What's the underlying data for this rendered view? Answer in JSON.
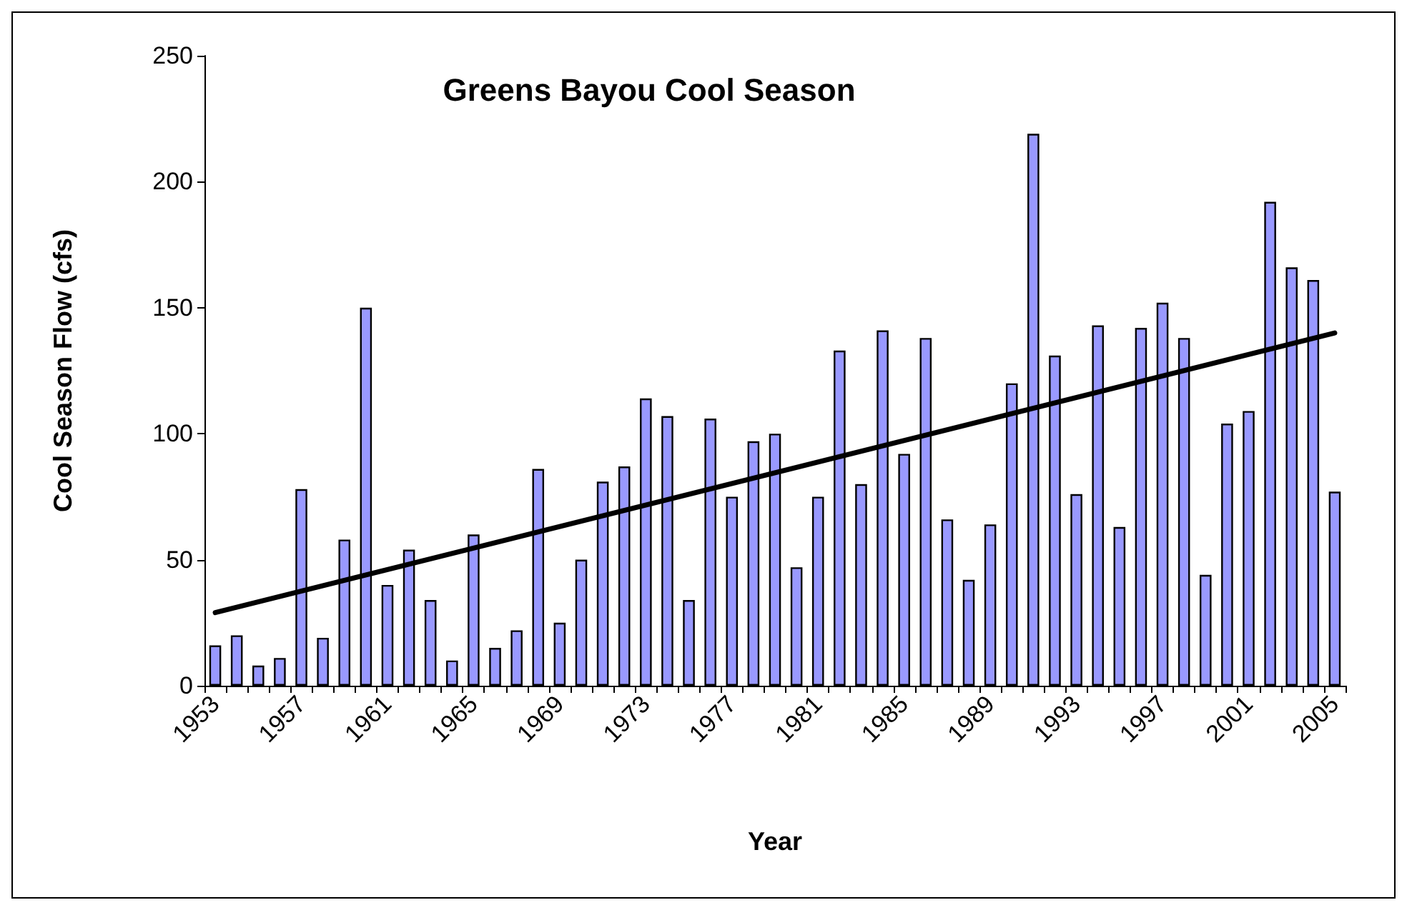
{
  "chart_data": {
    "type": "bar",
    "title": "Greens Bayou Cool Season",
    "xlabel": "Year",
    "ylabel": "Cool Season Flow (cfs)",
    "categories": [
      "1953",
      null,
      null,
      null,
      "1957",
      null,
      null,
      null,
      "1961",
      null,
      null,
      null,
      "1965",
      null,
      null,
      null,
      "1969",
      null,
      null,
      null,
      "1973",
      null,
      null,
      null,
      "1977",
      null,
      null,
      null,
      "1981",
      null,
      null,
      null,
      "1985",
      null,
      null,
      null,
      "1989",
      null,
      null,
      null,
      "1993",
      null,
      null,
      null,
      "1997",
      null,
      null,
      null,
      "2001",
      null,
      null,
      null,
      "2005"
    ],
    "series": [
      {
        "color": "#9999ff",
        "values": [
          16,
          20,
          8,
          11,
          78,
          19,
          58,
          150,
          40,
          54,
          34,
          10,
          60,
          15,
          22,
          86,
          25,
          50,
          81,
          87,
          114,
          107,
          34,
          106,
          75,
          97,
          100,
          47,
          75,
          133,
          80,
          141,
          92,
          138,
          66,
          42,
          64,
          120,
          219,
          131,
          76,
          143,
          63,
          142,
          152,
          138,
          44,
          104,
          109,
          192,
          166,
          161,
          77
        ]
      },
      {
        "type": "line",
        "color": "#000000",
        "values": [
          29,
          null,
          null,
          null,
          null,
          null,
          null,
          null,
          null,
          null,
          null,
          null,
          null,
          null,
          null,
          null,
          null,
          null,
          null,
          null,
          null,
          null,
          null,
          null,
          null,
          null,
          null,
          null,
          null,
          null,
          null,
          null,
          null,
          null,
          null,
          null,
          null,
          null,
          null,
          null,
          null,
          null,
          null,
          null,
          null,
          null,
          null,
          null,
          null,
          null,
          null,
          null,
          140
        ]
      }
    ],
    "ylim": [
      0,
      250
    ],
    "yticks": [
      0,
      50,
      100,
      150,
      200,
      250
    ],
    "grid": false,
    "marker": "none",
    "line_style": "solid"
  }
}
